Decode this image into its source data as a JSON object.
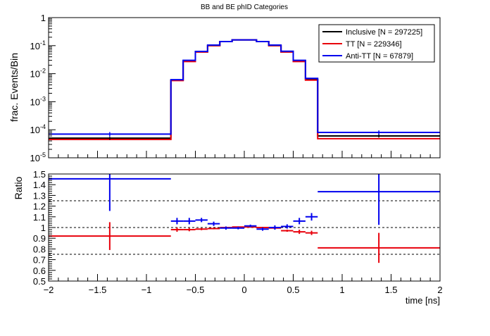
{
  "chart_data": [
    {
      "type": "line",
      "title": "BB and BE phID Categories",
      "xlabel": "",
      "ylabel": "frac. Events/Bin",
      "yscale": "log",
      "xlim": [
        -2,
        2
      ],
      "ylim": [
        1e-05,
        1
      ],
      "ytick_labels": [
        {
          "mant": "10",
          "exp": "-5",
          "v": 1e-05
        },
        {
          "mant": "10",
          "exp": "-4",
          "v": 0.0001
        },
        {
          "mant": "10",
          "exp": "-3",
          "v": 0.001
        },
        {
          "mant": "10",
          "exp": "-2",
          "v": 0.01
        },
        {
          "mant": "10",
          "exp": "-1",
          "v": 0.1
        },
        {
          "mant": "1",
          "exp": "",
          "v": 1
        }
      ],
      "bin_edges": [
        -2,
        -0.75,
        -0.625,
        -0.5,
        -0.375,
        -0.25,
        -0.125,
        0,
        0.125,
        0.25,
        0.375,
        0.5,
        0.625,
        0.75,
        2
      ],
      "legend_placement": "top-right",
      "series": [
        {
          "name": "Inclusive [N = 297225]",
          "color": "#000000",
          "values": [
            5e-05,
            0.0058,
            0.028,
            0.06,
            0.1,
            0.14,
            0.16,
            0.16,
            0.14,
            0.1,
            0.06,
            0.028,
            0.0062,
            6e-05
          ]
        },
        {
          "name": "TT [N = 229346]",
          "color": "#e8000b",
          "values": [
            4.5e-05,
            0.0057,
            0.027,
            0.059,
            0.1,
            0.14,
            0.16,
            0.16,
            0.14,
            0.1,
            0.059,
            0.027,
            0.0059,
            4.8e-05
          ]
        },
        {
          "name": "Anti-TT [N = 67879]",
          "color": "#0000ee",
          "values": [
            7e-05,
            0.0061,
            0.03,
            0.062,
            0.105,
            0.14,
            0.16,
            0.16,
            0.14,
            0.105,
            0.063,
            0.03,
            0.0068,
            8e-05
          ]
        }
      ]
    },
    {
      "type": "scatter",
      "title": "",
      "xlabel": "time [ns]",
      "ylabel": "Ratio",
      "xlim": [
        -2,
        2
      ],
      "ylim": [
        0.5,
        1.5
      ],
      "xtick_labels": [
        "−2",
        "−1.5",
        "−1",
        "−0.5",
        "0",
        "0.5",
        "1",
        "1.5",
        "2"
      ],
      "xtick_values": [
        -2,
        -1.5,
        -1,
        -0.5,
        0,
        0.5,
        1,
        1.5,
        2
      ],
      "ytick_labels": [
        "0.5",
        "0.6",
        "0.7",
        "0.8",
        "0.9",
        "1",
        "1.1",
        "1.2",
        "1.3",
        "1.4",
        "1.5"
      ],
      "ytick_values": [
        0.5,
        0.6,
        0.7,
        0.8,
        0.9,
        1,
        1.1,
        1.2,
        1.3,
        1.4,
        1.5
      ],
      "reference_lines": [
        0.75,
        1.0,
        1.25
      ],
      "series": [
        {
          "name": "TT [N = 229346]",
          "color": "#e8000b",
          "points": [
            {
              "x": -1.375,
              "xerr": 0.625,
              "y": 0.92,
              "yerr": 0.13
            },
            {
              "x": -0.6875,
              "xerr": 0.0625,
              "y": 0.98,
              "yerr": 0.02
            },
            {
              "x": -0.5625,
              "xerr": 0.0625,
              "y": 0.98,
              "yerr": 0.015
            },
            {
              "x": -0.4375,
              "xerr": 0.0625,
              "y": 0.985,
              "yerr": 0.01
            },
            {
              "x": -0.3125,
              "xerr": 0.0625,
              "y": 0.99,
              "yerr": 0.007
            },
            {
              "x": -0.1875,
              "xerr": 0.0625,
              "y": 1.0,
              "yerr": 0.005
            },
            {
              "x": -0.0625,
              "xerr": 0.0625,
              "y": 1.005,
              "yerr": 0.004
            },
            {
              "x": 0.0625,
              "xerr": 0.0625,
              "y": 1.005,
              "yerr": 0.004
            },
            {
              "x": 0.1875,
              "xerr": 0.0625,
              "y": 1.0,
              "yerr": 0.005
            },
            {
              "x": 0.3125,
              "xerr": 0.0625,
              "y": 0.995,
              "yerr": 0.007
            },
            {
              "x": 0.4375,
              "xerr": 0.0625,
              "y": 0.97,
              "yerr": 0.01
            },
            {
              "x": 0.5625,
              "xerr": 0.0625,
              "y": 0.96,
              "yerr": 0.02
            },
            {
              "x": 0.6875,
              "xerr": 0.0625,
              "y": 0.95,
              "yerr": 0.02
            },
            {
              "x": 1.375,
              "xerr": 0.625,
              "y": 0.81,
              "yerr": 0.14
            }
          ]
        },
        {
          "name": "Anti-TT [N = 67879]",
          "color": "#0000ee",
          "points": [
            {
              "x": -1.375,
              "xerr": 0.625,
              "y": 1.455,
              "yerr": 0.3
            },
            {
              "x": -0.6875,
              "xerr": 0.0625,
              "y": 1.06,
              "yerr": 0.03
            },
            {
              "x": -0.5625,
              "xerr": 0.0625,
              "y": 1.06,
              "yerr": 0.03
            },
            {
              "x": -0.4375,
              "xerr": 0.0625,
              "y": 1.07,
              "yerr": 0.02
            },
            {
              "x": -0.3125,
              "xerr": 0.0625,
              "y": 1.035,
              "yerr": 0.02
            },
            {
              "x": -0.1875,
              "xerr": 0.0625,
              "y": 0.995,
              "yerr": 0.015
            },
            {
              "x": -0.0625,
              "xerr": 0.0625,
              "y": 0.995,
              "yerr": 0.012
            },
            {
              "x": 0.0625,
              "xerr": 0.0625,
              "y": 1.015,
              "yerr": 0.012
            },
            {
              "x": 0.1875,
              "xerr": 0.0625,
              "y": 0.985,
              "yerr": 0.015
            },
            {
              "x": 0.3125,
              "xerr": 0.0625,
              "y": 1.0,
              "yerr": 0.02
            },
            {
              "x": 0.4375,
              "xerr": 0.0625,
              "y": 1.01,
              "yerr": 0.02
            },
            {
              "x": 0.5625,
              "xerr": 0.0625,
              "y": 1.06,
              "yerr": 0.03
            },
            {
              "x": 0.6875,
              "xerr": 0.0625,
              "y": 1.1,
              "yerr": 0.035
            },
            {
              "x": 1.375,
              "xerr": 0.625,
              "y": 1.335,
              "yerr": 0.31
            }
          ]
        }
      ]
    }
  ]
}
